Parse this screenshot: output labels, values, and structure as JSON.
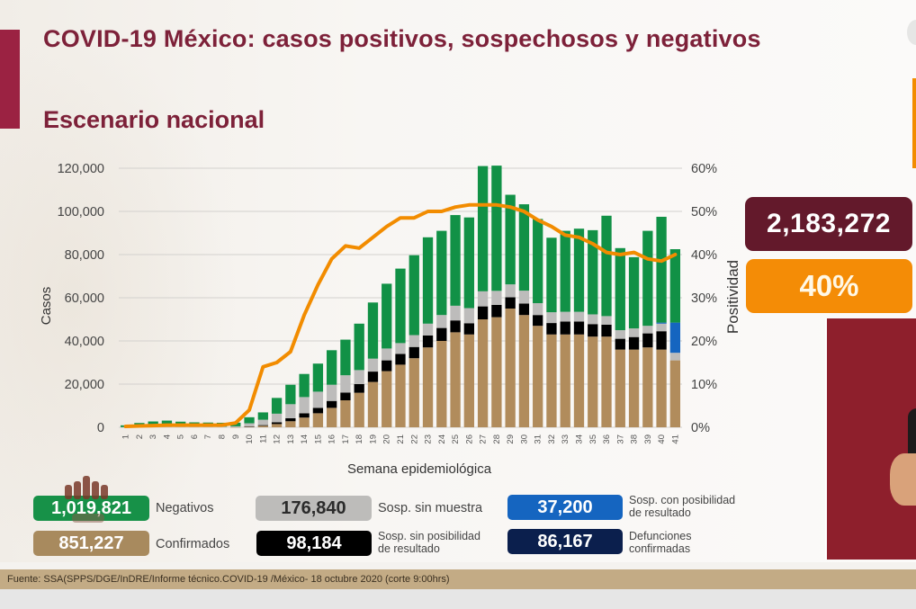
{
  "header": {
    "title": "COVID-19 México: casos positivos, sospechosos y negativos",
    "subtitle": "Escenario nacional"
  },
  "summary": {
    "total": "2,183,272",
    "positivity": "40%"
  },
  "legend": [
    {
      "key": "negativos",
      "value": "1,019,821",
      "label": "Negativos",
      "color": "#179148"
    },
    {
      "key": "confirmados",
      "value": "851,227",
      "label": "Confirmados",
      "color": "#a88a5e"
    },
    {
      "key": "sin_muestra",
      "value": "176,840",
      "label": "Sosp. sin muestra",
      "color": "#b5b4b2"
    },
    {
      "key": "sin_posibilidad",
      "value": "98,184",
      "label_line1": "Sosp. sin posibilidad",
      "label_line2": "de resultado",
      "color": "#000000"
    },
    {
      "key": "con_posibilidad",
      "value": "37,200",
      "label_line1": "Sosp. con posibilidad",
      "label_line2": "de resultado",
      "color": "#1565c0"
    },
    {
      "key": "defunciones",
      "value": "86,167",
      "label_line1": "Defunciones",
      "label_line2": "confirmadas",
      "color": "#0b1f4d"
    }
  ],
  "footer": {
    "source": "Fuente: SSA(SPPS/DGE/InDRE/Informe técnico.COVID-19 /México- 18 octubre 2020 (corte 9:00hrs)"
  },
  "colors": {
    "brand_maroon": "#7d2139",
    "line_orange": "#f28c00",
    "confirmed": "#b18c5c",
    "no_result": "#000000",
    "no_sample": "#bdbcbb",
    "with_possible_result": "#1565c0",
    "negative": "#119146"
  },
  "chart_data": {
    "type": "bar",
    "stacked": true,
    "title": "",
    "xlabel": "Semana epidemiológica",
    "ylabel": "Casos",
    "y2label": "Positividad",
    "ylim": [
      0,
      120000
    ],
    "y2lim": [
      0,
      60
    ],
    "yticks": [
      "0",
      "20,000",
      "40,000",
      "60,000",
      "80,000",
      "100,000",
      "120,000"
    ],
    "y2ticks": [
      "0%",
      "10%",
      "20%",
      "30%",
      "40%",
      "50%",
      "60%"
    ],
    "grid": true,
    "categories": [
      "1",
      "2",
      "3",
      "4",
      "5",
      "6",
      "7",
      "8",
      "9",
      "10",
      "11",
      "12",
      "13",
      "14",
      "15",
      "16",
      "17",
      "18",
      "19",
      "20",
      "21",
      "22",
      "23",
      "24",
      "25",
      "26",
      "27",
      "28",
      "29",
      "30",
      "31",
      "32",
      "33",
      "34",
      "35",
      "36",
      "37",
      "38",
      "39",
      "40",
      "41"
    ],
    "series": [
      {
        "name": "Confirmados",
        "values": [
          0,
          0,
          0,
          0,
          0,
          0,
          0,
          0,
          50,
          300,
          700,
          1500,
          2800,
          4500,
          6500,
          9000,
          12500,
          16000,
          21000,
          26000,
          29000,
          32000,
          37000,
          40000,
          44000,
          43000,
          50000,
          51000,
          55000,
          52000,
          47000,
          43000,
          43000,
          43000,
          42000,
          42000,
          36000,
          36000,
          37000,
          36000,
          31000
        ]
      },
      {
        "name": "Sosp. sin posibilidad de resultado",
        "values": [
          0,
          0,
          0,
          0,
          0,
          0,
          0,
          0,
          0,
          50,
          300,
          800,
          1400,
          2000,
          2500,
          3200,
          3600,
          4000,
          4800,
          5000,
          5000,
          5200,
          5500,
          6000,
          5500,
          5200,
          6000,
          5700,
          5200,
          5300,
          5000,
          5300,
          6000,
          6000,
          5800,
          5500,
          5000,
          5800,
          6500,
          8500,
          0
        ]
      },
      {
        "name": "Sosp. sin muestra",
        "values": [
          100,
          200,
          300,
          300,
          300,
          300,
          300,
          300,
          400,
          1500,
          2500,
          4000,
          6500,
          7500,
          7500,
          7500,
          8000,
          6500,
          6000,
          5500,
          5000,
          5500,
          5500,
          6000,
          6800,
          7000,
          7000,
          6500,
          6000,
          6000,
          5500,
          5000,
          4500,
          4500,
          4500,
          4000,
          4000,
          4000,
          3500,
          3500,
          3500
        ]
      },
      {
        "name": "Sosp. con posibilidad de resultado",
        "values": [
          0,
          0,
          0,
          0,
          0,
          0,
          0,
          0,
          0,
          0,
          0,
          0,
          0,
          0,
          0,
          0,
          0,
          0,
          0,
          0,
          0,
          0,
          0,
          0,
          0,
          0,
          0,
          0,
          0,
          0,
          0,
          0,
          0,
          0,
          0,
          0,
          0,
          0,
          0,
          500,
          14000
        ]
      },
      {
        "name": "Negativos",
        "values": [
          800,
          1800,
          2400,
          2800,
          2300,
          2000,
          1900,
          1800,
          1700,
          2800,
          3400,
          7300,
          9000,
          10700,
          13000,
          16000,
          16500,
          21500,
          26000,
          30000,
          34500,
          37000,
          40000,
          39000,
          42000,
          42000,
          58000,
          58000,
          41500,
          40000,
          39000,
          34500,
          37500,
          38500,
          39000,
          46500,
          38000,
          33000,
          44000,
          49000,
          34000
        ]
      },
      {
        "name": "Positividad (%)",
        "axis": "y2",
        "type": "line",
        "values": [
          0.2,
          0.3,
          0.4,
          0.5,
          0.5,
          0.5,
          0.5,
          0.5,
          1,
          4,
          14,
          15,
          17.5,
          26,
          33,
          39,
          42,
          41.5,
          44,
          46.5,
          48.5,
          48.5,
          50,
          50,
          51,
          51.5,
          51.5,
          51.5,
          51,
          50,
          48,
          46.5,
          44.5,
          44,
          42.5,
          40.5,
          40,
          40.5,
          39,
          38.5,
          40
        ]
      }
    ]
  }
}
